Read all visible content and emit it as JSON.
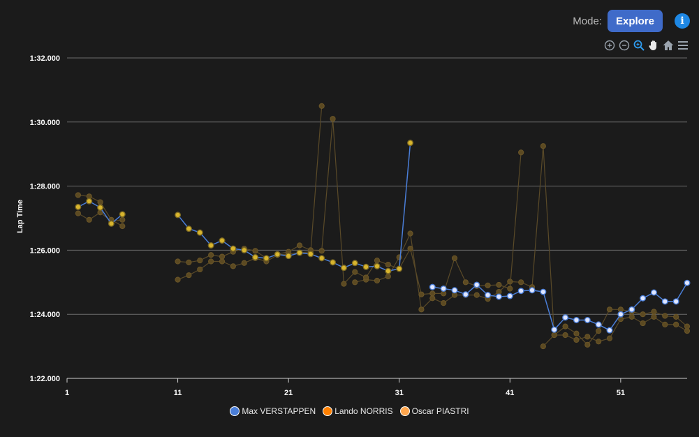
{
  "header": {
    "mode_label": "Mode:",
    "mode_button": "Explore",
    "info_glyph": "i"
  },
  "toolbar": {
    "icons": [
      "zoom-in-icon",
      "zoom-out-icon",
      "zoom-select-icon",
      "pan-icon",
      "home-icon",
      "menu-icon"
    ]
  },
  "colors": {
    "background": "#1b1b1b",
    "verstappen": "#4a7ed8",
    "norris": "#ff8000",
    "piastri": "#ffa64d",
    "marker_fill": "#dfe6ff",
    "verstappen_dim": "#d8b52e",
    "faded_series": "#5a4a28"
  },
  "chart_data": {
    "type": "line",
    "title": "",
    "xlabel": "",
    "ylabel": "Lap Time",
    "xlim": [
      1,
      57
    ],
    "ylim": [
      82,
      92
    ],
    "yticks": [
      82,
      84,
      86,
      88,
      90,
      92
    ],
    "ytick_labels": [
      "1:22.000",
      "1:24.000",
      "1:26.000",
      "1:28.000",
      "1:30.000",
      "1:32.000"
    ],
    "xticks": [
      1,
      11,
      21,
      31,
      41,
      51
    ],
    "xtick_labels": [
      "1",
      "11",
      "21",
      "31",
      "41",
      "51"
    ],
    "legend": [
      "Max VERSTAPPEN",
      "Lando NORRIS",
      "Oscar PIASTRI"
    ],
    "series": [
      {
        "name": "Max VERSTAPPEN",
        "highlight_from_lap": 34,
        "points": [
          [
            2,
            87.35
          ],
          [
            3,
            87.53
          ],
          [
            4,
            87.33
          ],
          [
            5,
            86.83
          ],
          [
            6,
            87.12
          ],
          [
            11,
            87.1
          ],
          [
            12,
            86.67
          ],
          [
            13,
            86.55
          ],
          [
            14,
            86.15
          ],
          [
            15,
            86.3
          ],
          [
            16,
            86.05
          ],
          [
            17,
            86.0
          ],
          [
            18,
            85.78
          ],
          [
            19,
            85.75
          ],
          [
            20,
            85.87
          ],
          [
            21,
            85.82
          ],
          [
            22,
            85.92
          ],
          [
            23,
            85.88
          ],
          [
            24,
            85.75
          ],
          [
            25,
            85.62
          ],
          [
            26,
            85.45
          ],
          [
            27,
            85.6
          ],
          [
            28,
            85.48
          ],
          [
            29,
            85.5
          ],
          [
            30,
            85.35
          ],
          [
            31,
            85.42
          ],
          [
            32,
            89.35
          ],
          [
            34,
            84.85
          ],
          [
            35,
            84.8
          ],
          [
            36,
            84.75
          ],
          [
            37,
            84.62
          ],
          [
            38,
            84.92
          ],
          [
            39,
            84.6
          ],
          [
            40,
            84.55
          ],
          [
            41,
            84.57
          ],
          [
            42,
            84.73
          ],
          [
            43,
            84.75
          ],
          [
            44,
            84.7
          ],
          [
            45,
            83.52
          ],
          [
            46,
            83.9
          ],
          [
            47,
            83.82
          ],
          [
            48,
            83.82
          ],
          [
            49,
            83.68
          ],
          [
            50,
            83.5
          ],
          [
            51,
            84.0
          ],
          [
            52,
            84.15
          ],
          [
            53,
            84.5
          ],
          [
            54,
            84.68
          ],
          [
            55,
            84.4
          ],
          [
            56,
            84.4
          ],
          [
            57,
            84.98
          ]
        ]
      },
      {
        "name": "Lando NORRIS",
        "points": [
          [
            2,
            87.72
          ],
          [
            3,
            87.68
          ],
          [
            4,
            87.5
          ],
          [
            5,
            86.95
          ],
          [
            6,
            86.75
          ],
          [
            11,
            85.08
          ],
          [
            12,
            85.22
          ],
          [
            13,
            85.4
          ],
          [
            14,
            85.65
          ],
          [
            15,
            85.65
          ],
          [
            16,
            85.5
          ],
          [
            17,
            85.6
          ],
          [
            18,
            85.75
          ],
          [
            19,
            85.65
          ],
          [
            20,
            85.85
          ],
          [
            21,
            85.88
          ],
          [
            22,
            85.92
          ],
          [
            23,
            85.95
          ],
          [
            24,
            90.5
          ],
          [
            27,
            85.0
          ],
          [
            28,
            85.08
          ],
          [
            29,
            85.05
          ],
          [
            30,
            85.18
          ],
          [
            31,
            85.78
          ],
          [
            32,
            86.52
          ],
          [
            33,
            84.15
          ],
          [
            34,
            84.5
          ],
          [
            35,
            84.35
          ],
          [
            36,
            84.6
          ],
          [
            37,
            84.6
          ],
          [
            38,
            84.6
          ],
          [
            39,
            84.48
          ],
          [
            40,
            84.7
          ],
          [
            41,
            85.02
          ],
          [
            42,
            85.0
          ],
          [
            43,
            84.85
          ],
          [
            44,
            89.25
          ],
          [
            45,
            83.35
          ],
          [
            46,
            83.35
          ],
          [
            47,
            83.2
          ],
          [
            48,
            83.3
          ],
          [
            49,
            83.15
          ],
          [
            50,
            83.25
          ],
          [
            51,
            83.85
          ],
          [
            52,
            83.92
          ],
          [
            53,
            83.72
          ],
          [
            54,
            83.92
          ],
          [
            55,
            83.68
          ],
          [
            56,
            83.68
          ],
          [
            57,
            83.48
          ]
        ]
      },
      {
        "name": "Oscar PIASTRI",
        "points": [
          [
            2,
            87.15
          ],
          [
            3,
            86.95
          ],
          [
            4,
            87.18
          ],
          [
            5,
            86.9
          ],
          [
            6,
            86.95
          ],
          [
            11,
            85.65
          ],
          [
            12,
            85.62
          ],
          [
            13,
            85.68
          ],
          [
            14,
            85.85
          ],
          [
            15,
            85.8
          ],
          [
            16,
            85.95
          ],
          [
            17,
            86.05
          ],
          [
            18,
            85.98
          ],
          [
            19,
            85.75
          ],
          [
            20,
            85.88
          ],
          [
            21,
            85.95
          ],
          [
            22,
            86.15
          ],
          [
            23,
            86.0
          ],
          [
            24,
            85.98
          ],
          [
            25,
            90.1
          ],
          [
            26,
            84.95
          ],
          [
            27,
            85.32
          ],
          [
            28,
            85.15
          ],
          [
            29,
            85.68
          ],
          [
            30,
            85.55
          ],
          [
            31,
            85.42
          ],
          [
            32,
            86.05
          ],
          [
            33,
            84.62
          ],
          [
            34,
            84.65
          ],
          [
            35,
            84.65
          ],
          [
            36,
            85.75
          ],
          [
            37,
            85.0
          ],
          [
            38,
            84.88
          ],
          [
            39,
            84.9
          ],
          [
            40,
            84.92
          ],
          [
            41,
            84.8
          ],
          [
            42,
            89.05
          ],
          [
            44,
            83.0
          ],
          [
            45,
            83.35
          ],
          [
            46,
            83.62
          ],
          [
            47,
            83.4
          ],
          [
            48,
            83.05
          ],
          [
            49,
            83.48
          ],
          [
            50,
            84.15
          ],
          [
            51,
            84.15
          ],
          [
            52,
            84.08
          ],
          [
            53,
            84.0
          ],
          [
            54,
            84.08
          ],
          [
            55,
            83.95
          ],
          [
            56,
            83.92
          ],
          [
            57,
            83.62
          ]
        ]
      }
    ]
  }
}
